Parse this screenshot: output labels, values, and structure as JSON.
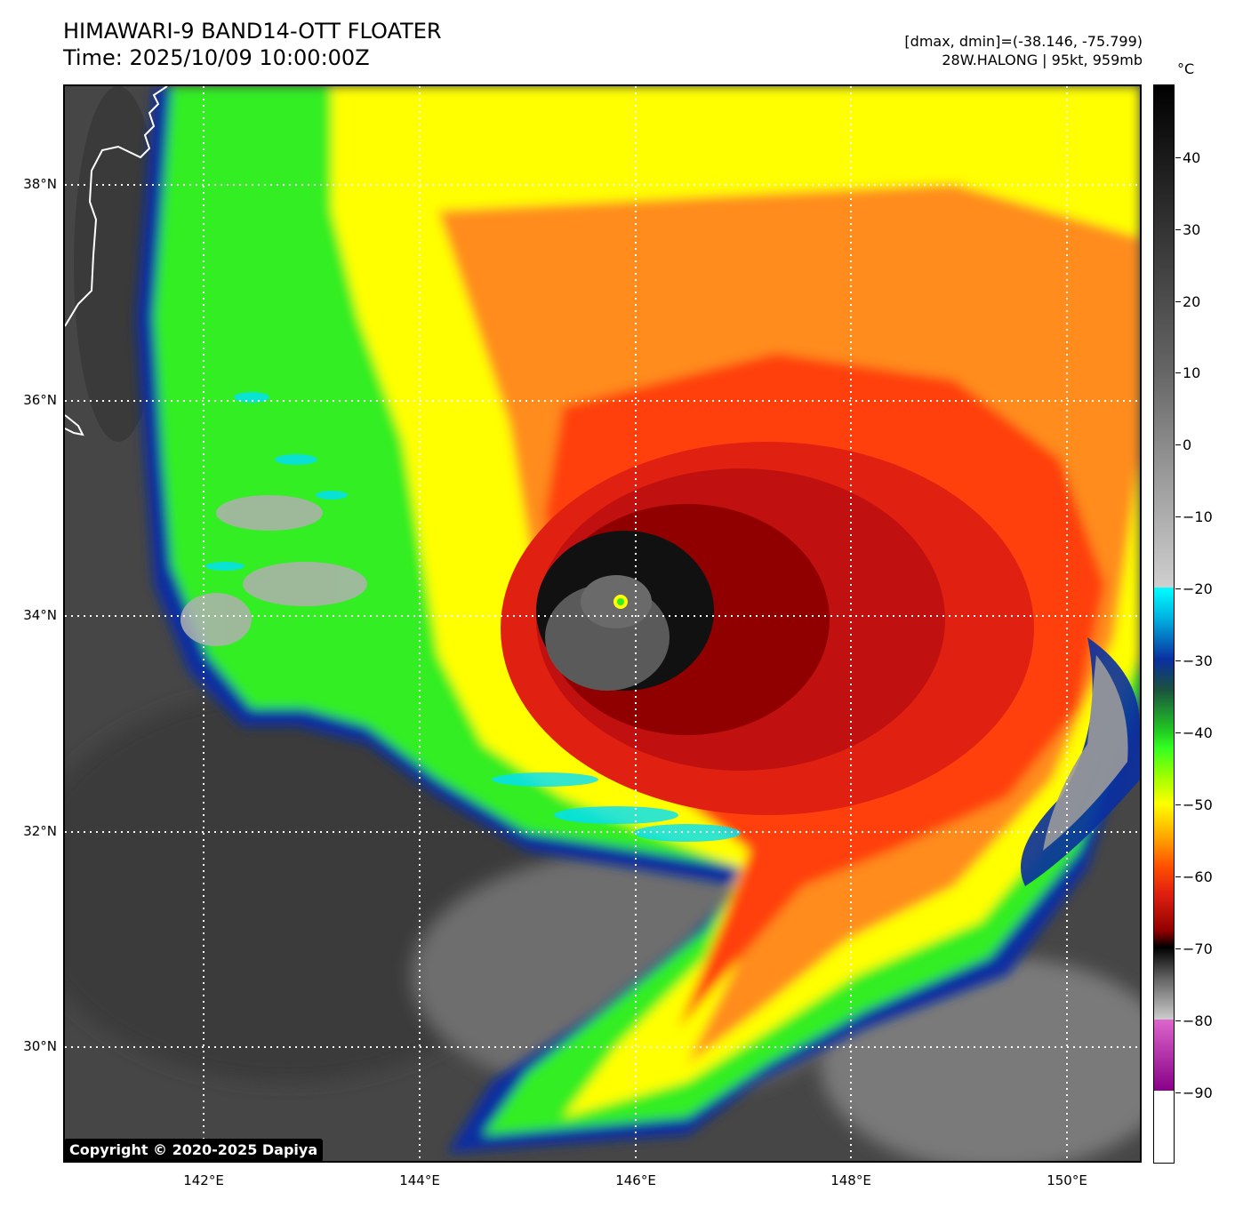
{
  "title": {
    "line1": "HIMAWARI-9 BAND14-OTT FLOATER",
    "line2": "Time: 2025/10/09 10:00:00Z"
  },
  "meta": {
    "range": "[dmax, dmin]=(-38.146, -75.799)",
    "storm": "28W.HALONG | 95kt, 959mb"
  },
  "colorbar": {
    "unit": "°C",
    "ticks": [
      "40",
      "30",
      "20",
      "10",
      "0",
      "−10",
      "−20",
      "−30",
      "−40",
      "−50",
      "−60",
      "−70",
      "−80",
      "−90"
    ]
  },
  "axes": {
    "lat_labels": [
      "38°N",
      "36°N",
      "34°N",
      "32°N",
      "30°N"
    ],
    "lon_labels": [
      "142°E",
      "144°E",
      "146°E",
      "148°E",
      "150°E"
    ]
  },
  "copyright": "Copyright © 2020-2025 Dapiya",
  "colors": {
    "background_land_sea": "#4a4a4a",
    "cold_cloud_red": "#e02010",
    "cold_cloud_orange": "#ff8c1a",
    "cloud_yellow": "#ffff00",
    "cloud_green": "#33ee22",
    "cloud_blue": "#0a2fa0",
    "cloud_cyan": "#00e0ff",
    "coastline": "#ffffff"
  }
}
